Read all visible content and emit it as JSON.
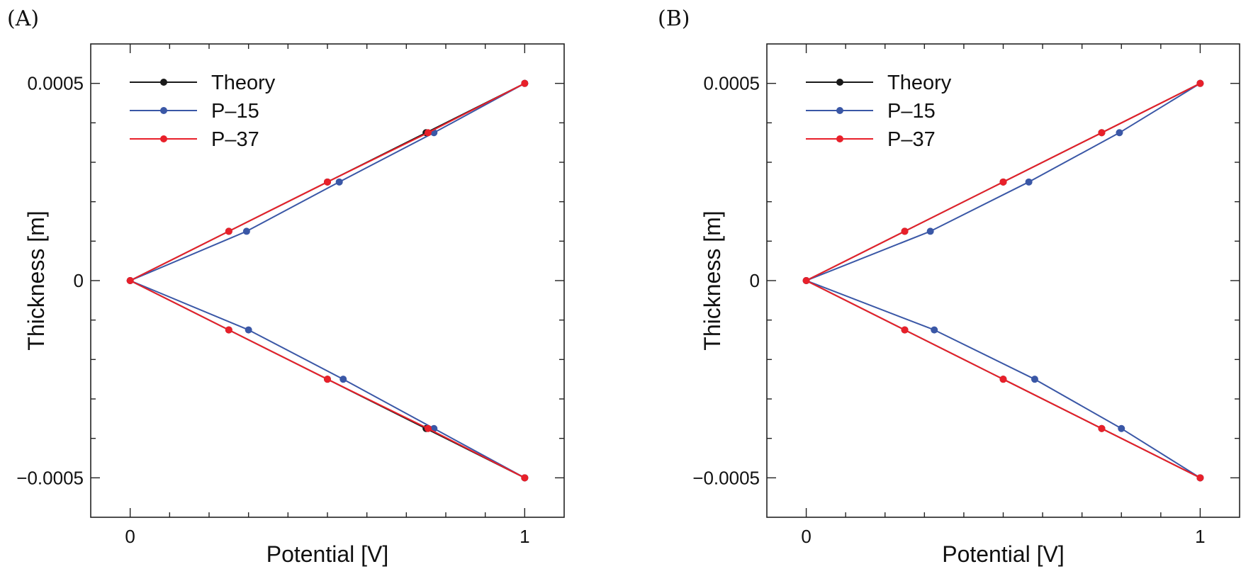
{
  "chart_data": [
    {
      "type": "line",
      "panel_label": "(A)",
      "xlabel": "Potential [V]",
      "ylabel": "Thickness [m]",
      "xlim": [
        -0.1,
        1.1
      ],
      "ylim": [
        -0.0006,
        0.0006
      ],
      "x_ticks": [
        0,
        1
      ],
      "x_tick_labels": [
        "0",
        "1"
      ],
      "y_ticks": [
        -0.0005,
        0,
        0.0005
      ],
      "y_tick_labels": [
        "−0.0005",
        "0",
        "0.0005"
      ],
      "legend_position": "top-left",
      "series": [
        {
          "name": "Theory",
          "color": "#1a1a1a",
          "x": [
            1,
            0.75,
            0.5,
            0.25,
            0,
            0.25,
            0.5,
            0.75,
            1
          ],
          "y": [
            -0.0005,
            -0.000375,
            -0.00025,
            -0.000125,
            0,
            0.000125,
            0.00025,
            0.000375,
            0.0005
          ]
        },
        {
          "name": "P–15",
          "color": "#3a57a6",
          "x": [
            1,
            0.77,
            0.54,
            0.3,
            0,
            0.295,
            0.53,
            0.77,
            1
          ],
          "y": [
            -0.0005,
            -0.000375,
            -0.00025,
            -0.000125,
            0,
            0.000125,
            0.00025,
            0.000375,
            0.0005
          ]
        },
        {
          "name": "P–37",
          "color": "#e8202a",
          "x": [
            1,
            0.755,
            0.5,
            0.25,
            0,
            0.25,
            0.5,
            0.755,
            1
          ],
          "y": [
            -0.0005,
            -0.000375,
            -0.00025,
            -0.000125,
            0,
            0.000125,
            0.00025,
            0.000375,
            0.0005
          ]
        }
      ]
    },
    {
      "type": "line",
      "panel_label": "(B)",
      "xlabel": "Potential [V]",
      "ylabel": "Thickness [m]",
      "xlim": [
        -0.1,
        1.1
      ],
      "ylim": [
        -0.0006,
        0.0006
      ],
      "x_ticks": [
        0,
        1
      ],
      "x_tick_labels": [
        "0",
        "1"
      ],
      "y_ticks": [
        -0.0005,
        0,
        0.0005
      ],
      "y_tick_labels": [
        "−0.0005",
        "0",
        "0.0005"
      ],
      "legend_position": "top-left",
      "series": [
        {
          "name": "Theory",
          "color": "#1a1a1a",
          "x": [
            1,
            0.75,
            0.5,
            0.25,
            0,
            0.25,
            0.5,
            0.75,
            1
          ],
          "y": [
            -0.0005,
            -0.000375,
            -0.00025,
            -0.000125,
            0,
            0.000125,
            0.00025,
            0.000375,
            0.0005
          ]
        },
        {
          "name": "P–15",
          "color": "#3a57a6",
          "x": [
            1,
            0.8,
            0.58,
            0.325,
            0,
            0.315,
            0.565,
            0.795,
            1
          ],
          "y": [
            -0.0005,
            -0.000375,
            -0.00025,
            -0.000125,
            0,
            0.000125,
            0.00025,
            0.000375,
            0.0005
          ]
        },
        {
          "name": "P–37",
          "color": "#e8202a",
          "x": [
            1,
            0.75,
            0.5,
            0.25,
            0,
            0.25,
            0.5,
            0.75,
            1
          ],
          "y": [
            -0.0005,
            -0.000375,
            -0.00025,
            -0.000125,
            0,
            0.000125,
            0.00025,
            0.000375,
            0.0005
          ]
        }
      ]
    }
  ]
}
